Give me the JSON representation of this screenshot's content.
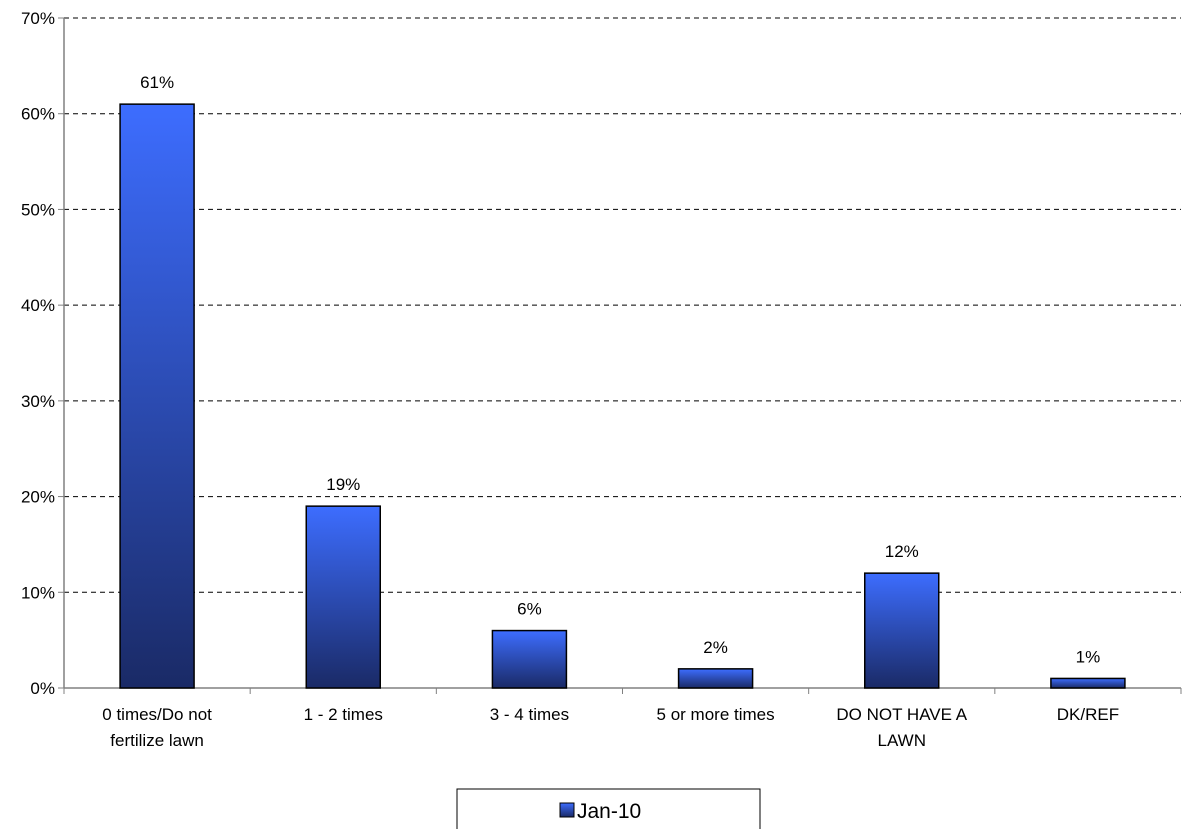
{
  "chart_data": {
    "type": "bar",
    "categories": [
      [
        "0 times/Do not",
        "fertilize lawn"
      ],
      [
        "1 - 2 times"
      ],
      [
        "3 - 4 times"
      ],
      [
        "5 or more times"
      ],
      [
        "DO NOT HAVE A",
        "LAWN"
      ],
      [
        "DK/REF"
      ]
    ],
    "series": [
      {
        "name": "Jan-10",
        "values": [
          61,
          19,
          6,
          2,
          12,
          1
        ]
      }
    ],
    "data_labels": [
      "61%",
      "19%",
      "6%",
      "2%",
      "12%",
      "1%"
    ],
    "y_ticks": [
      "0%",
      "10%",
      "20%",
      "30%",
      "40%",
      "50%",
      "60%",
      "70%"
    ],
    "ylim": [
      0,
      70
    ],
    "grid": "horizontal-dashed",
    "legend_position": "bottom",
    "colors": {
      "bar_top": "#3d6dff",
      "bar_bottom": "#1a2a66",
      "bar_stroke": "#000000",
      "grid": "#000000",
      "axis": "#808080"
    }
  }
}
